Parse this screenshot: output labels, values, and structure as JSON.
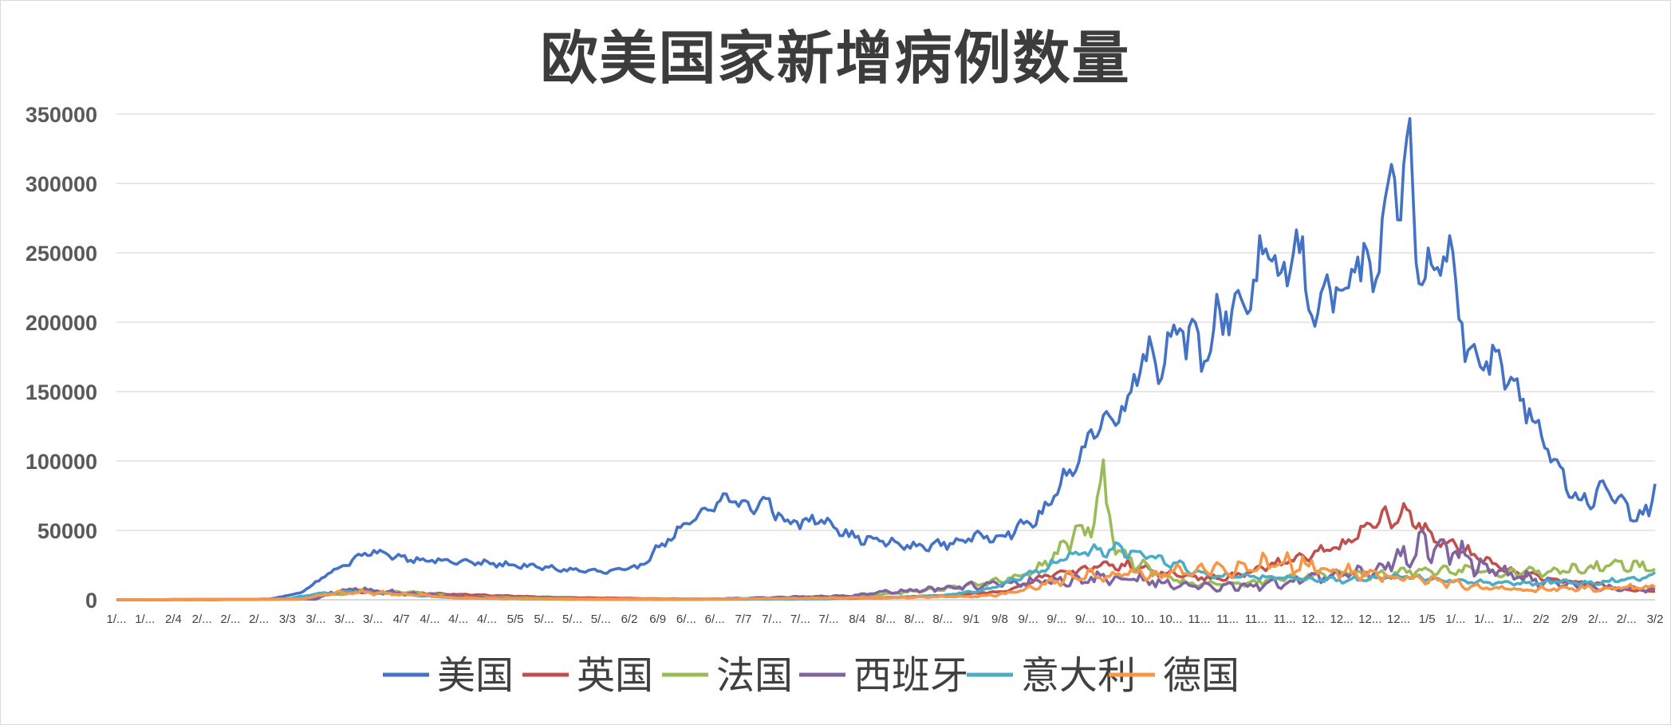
{
  "chart_data": {
    "type": "line",
    "title": "欧美国家新增病例数量",
    "xlabel": "",
    "ylabel": "",
    "ylim": [
      0,
      350000
    ],
    "yticks": [
      "0",
      "50000",
      "100000",
      "150000",
      "200000",
      "250000",
      "300000",
      "350000"
    ],
    "grid": "horizontal",
    "legend_position": "bottom",
    "x_tick_labels": [
      "1/...",
      "1/...",
      "2/4",
      "2/...",
      "2/...",
      "2/...",
      "3/3",
      "3/...",
      "3/...",
      "3/...",
      "4/7",
      "4/...",
      "4/...",
      "4/...",
      "5/5",
      "5/...",
      "5/...",
      "5/...",
      "6/2",
      "6/9",
      "6/...",
      "6/...",
      "7/7",
      "7/...",
      "7/...",
      "7/...",
      "8/4",
      "8/...",
      "8/...",
      "8/...",
      "9/1",
      "9/8",
      "9/...",
      "9/...",
      "9/...",
      "10...",
      "10...",
      "10...",
      "11...",
      "11...",
      "11...",
      "11...",
      "12...",
      "12...",
      "12...",
      "12...",
      "1/5",
      "1/...",
      "1/...",
      "1/...",
      "2/2",
      "2/9",
      "2/...",
      "2/...",
      "3/2"
    ],
    "series": [
      {
        "name": "美国",
        "color": "#4472C4",
        "keyframes": [
          [
            0,
            0
          ],
          [
            30,
            0
          ],
          [
            50,
            500
          ],
          [
            60,
            5000
          ],
          [
            70,
            20000
          ],
          [
            80,
            32000
          ],
          [
            85,
            34000
          ],
          [
            95,
            30000
          ],
          [
            105,
            28000
          ],
          [
            115,
            27000
          ],
          [
            130,
            25000
          ],
          [
            145,
            22000
          ],
          [
            160,
            20000
          ],
          [
            170,
            23000
          ],
          [
            178,
            40000
          ],
          [
            185,
            52000
          ],
          [
            195,
            67000
          ],
          [
            200,
            75000
          ],
          [
            205,
            66000
          ],
          [
            212,
            71000
          ],
          [
            218,
            57000
          ],
          [
            225,
            55000
          ],
          [
            230,
            60000
          ],
          [
            240,
            45000
          ],
          [
            250,
            42000
          ],
          [
            260,
            38000
          ],
          [
            270,
            40000
          ],
          [
            280,
            45000
          ],
          [
            290,
            47000
          ],
          [
            300,
            58000
          ],
          [
            305,
            70000
          ],
          [
            310,
            90000
          ],
          [
            313,
            100000
          ],
          [
            318,
            118000
          ],
          [
            323,
            132000
          ],
          [
            330,
            140000
          ],
          [
            335,
            185000
          ],
          [
            340,
            165000
          ],
          [
            345,
            200000
          ],
          [
            355,
            175000
          ],
          [
            360,
            205000
          ],
          [
            370,
            220000
          ],
          [
            375,
            250000
          ],
          [
            380,
            225000
          ],
          [
            385,
            260000
          ],
          [
            390,
            205000
          ],
          [
            395,
            230000
          ],
          [
            400,
            215000
          ],
          [
            405,
            245000
          ],
          [
            410,
            230000
          ],
          [
            416,
            290000
          ],
          [
            420,
            300000
          ],
          [
            422,
            325000
          ],
          [
            425,
            230000
          ],
          [
            430,
            240000
          ],
          [
            435,
            250000
          ],
          [
            440,
            190000
          ],
          [
            445,
            175000
          ],
          [
            450,
            170000
          ],
          [
            455,
            160000
          ],
          [
            460,
            140000
          ],
          [
            465,
            120000
          ],
          [
            470,
            100000
          ],
          [
            475,
            75000
          ],
          [
            480,
            70000
          ],
          [
            485,
            80000
          ],
          [
            490,
            72000
          ],
          [
            495,
            60000
          ],
          [
            500,
            62000
          ],
          [
            502,
            85000
          ]
        ],
        "amp": 0.1
      },
      {
        "name": "英国",
        "color": "#C0504D",
        "keyframes": [
          [
            0,
            0
          ],
          [
            60,
            500
          ],
          [
            70,
            4000
          ],
          [
            80,
            5500
          ],
          [
            95,
            5000
          ],
          [
            110,
            4000
          ],
          [
            130,
            2500
          ],
          [
            150,
            1500
          ],
          [
            180,
            700
          ],
          [
            200,
            600
          ],
          [
            220,
            800
          ],
          [
            250,
            1500
          ],
          [
            270,
            3000
          ],
          [
            290,
            6000
          ],
          [
            300,
            15000
          ],
          [
            310,
            20000
          ],
          [
            320,
            24000
          ],
          [
            330,
            25000
          ],
          [
            340,
            20000
          ],
          [
            350,
            17000
          ],
          [
            360,
            15000
          ],
          [
            370,
            20000
          ],
          [
            385,
            30000
          ],
          [
            400,
            38000
          ],
          [
            410,
            55000
          ],
          [
            420,
            62000
          ],
          [
            425,
            55000
          ],
          [
            430,
            45000
          ],
          [
            440,
            35000
          ],
          [
            450,
            25000
          ],
          [
            460,
            18000
          ],
          [
            470,
            14000
          ],
          [
            480,
            12000
          ],
          [
            490,
            8000
          ],
          [
            502,
            6000
          ]
        ],
        "amp": 0.15
      },
      {
        "name": "法国",
        "color": "#9BBB59",
        "keyframes": [
          [
            0,
            0
          ],
          [
            60,
            500
          ],
          [
            70,
            4000
          ],
          [
            75,
            4500
          ],
          [
            80,
            9000
          ],
          [
            85,
            5000
          ],
          [
            95,
            5500
          ],
          [
            110,
            2500
          ],
          [
            130,
            1500
          ],
          [
            150,
            700
          ],
          [
            180,
            500
          ],
          [
            210,
            700
          ],
          [
            240,
            2500
          ],
          [
            255,
            5000
          ],
          [
            270,
            8000
          ],
          [
            280,
            11000
          ],
          [
            290,
            14000
          ],
          [
            300,
            22000
          ],
          [
            305,
            30000
          ],
          [
            310,
            40000
          ],
          [
            315,
            52000
          ],
          [
            318,
            50000
          ],
          [
            322,
            85000
          ],
          [
            326,
            35000
          ],
          [
            330,
            30000
          ],
          [
            340,
            18000
          ],
          [
            350,
            12000
          ],
          [
            360,
            11000
          ],
          [
            370,
            12000
          ],
          [
            380,
            15000
          ],
          [
            390,
            18000
          ],
          [
            400,
            20000
          ],
          [
            410,
            18000
          ],
          [
            420,
            20000
          ],
          [
            430,
            20000
          ],
          [
            440,
            21000
          ],
          [
            450,
            20000
          ],
          [
            460,
            20000
          ],
          [
            470,
            21000
          ],
          [
            480,
            22000
          ],
          [
            490,
            25000
          ],
          [
            502,
            24000
          ]
        ],
        "amp": 0.2
      },
      {
        "name": "西班牙",
        "color": "#8064A2",
        "keyframes": [
          [
            0,
            0
          ],
          [
            65,
            500
          ],
          [
            70,
            5000
          ],
          [
            78,
            7500
          ],
          [
            85,
            6000
          ],
          [
            95,
            4500
          ],
          [
            110,
            2500
          ],
          [
            130,
            800
          ],
          [
            160,
            400
          ],
          [
            190,
            300
          ],
          [
            210,
            1500
          ],
          [
            240,
            3000
          ],
          [
            260,
            7000
          ],
          [
            280,
            10000
          ],
          [
            300,
            13000
          ],
          [
            320,
            15000
          ],
          [
            330,
            15000
          ],
          [
            340,
            13000
          ],
          [
            350,
            10000
          ],
          [
            360,
            9000
          ],
          [
            370,
            10000
          ],
          [
            390,
            15000
          ],
          [
            400,
            18000
          ],
          [
            410,
            20000
          ],
          [
            420,
            35000
          ],
          [
            430,
            40000
          ],
          [
            440,
            30000
          ],
          [
            450,
            20000
          ],
          [
            460,
            15000
          ],
          [
            470,
            12000
          ],
          [
            480,
            10000
          ],
          [
            490,
            8000
          ],
          [
            502,
            7000
          ]
        ],
        "amp": 0.35
      },
      {
        "name": "意大利",
        "color": "#4BACC6",
        "keyframes": [
          [
            0,
            0
          ],
          [
            55,
            500
          ],
          [
            65,
            4000
          ],
          [
            75,
            6000
          ],
          [
            85,
            5000
          ],
          [
            95,
            3500
          ],
          [
            110,
            1500
          ],
          [
            130,
            600
          ],
          [
            150,
            300
          ],
          [
            190,
            250
          ],
          [
            230,
            600
          ],
          [
            250,
            1500
          ],
          [
            270,
            3000
          ],
          [
            285,
            8000
          ],
          [
            300,
            20000
          ],
          [
            310,
            30000
          ],
          [
            320,
            37000
          ],
          [
            330,
            35000
          ],
          [
            340,
            30000
          ],
          [
            350,
            22000
          ],
          [
            360,
            17000
          ],
          [
            370,
            17000
          ],
          [
            380,
            16000
          ],
          [
            390,
            15000
          ],
          [
            400,
            14000
          ],
          [
            410,
            16000
          ],
          [
            420,
            17000
          ],
          [
            430,
            15000
          ],
          [
            440,
            13000
          ],
          [
            450,
            12000
          ],
          [
            460,
            12000
          ],
          [
            470,
            13000
          ],
          [
            480,
            12000
          ],
          [
            490,
            14000
          ],
          [
            500,
            17000
          ],
          [
            502,
            19000
          ]
        ],
        "amp": 0.15
      },
      {
        "name": "德国",
        "color": "#F79646",
        "keyframes": [
          [
            0,
            0
          ],
          [
            60,
            500
          ],
          [
            70,
            4500
          ],
          [
            80,
            5500
          ],
          [
            95,
            4000
          ],
          [
            110,
            1500
          ],
          [
            130,
            700
          ],
          [
            160,
            400
          ],
          [
            200,
            600
          ],
          [
            230,
            1200
          ],
          [
            260,
            1800
          ],
          [
            280,
            2500
          ],
          [
            290,
            4000
          ],
          [
            300,
            10000
          ],
          [
            310,
            16000
          ],
          [
            320,
            18000
          ],
          [
            330,
            19000
          ],
          [
            340,
            18000
          ],
          [
            350,
            20000
          ],
          [
            360,
            22000
          ],
          [
            370,
            25000
          ],
          [
            380,
            28000
          ],
          [
            390,
            24000
          ],
          [
            400,
            20000
          ],
          [
            410,
            18000
          ],
          [
            420,
            16000
          ],
          [
            430,
            14000
          ],
          [
            440,
            10000
          ],
          [
            450,
            8000
          ],
          [
            460,
            7000
          ],
          [
            470,
            8000
          ],
          [
            480,
            8000
          ],
          [
            490,
            9000
          ],
          [
            502,
            9000
          ]
        ],
        "amp": 0.3
      }
    ]
  }
}
